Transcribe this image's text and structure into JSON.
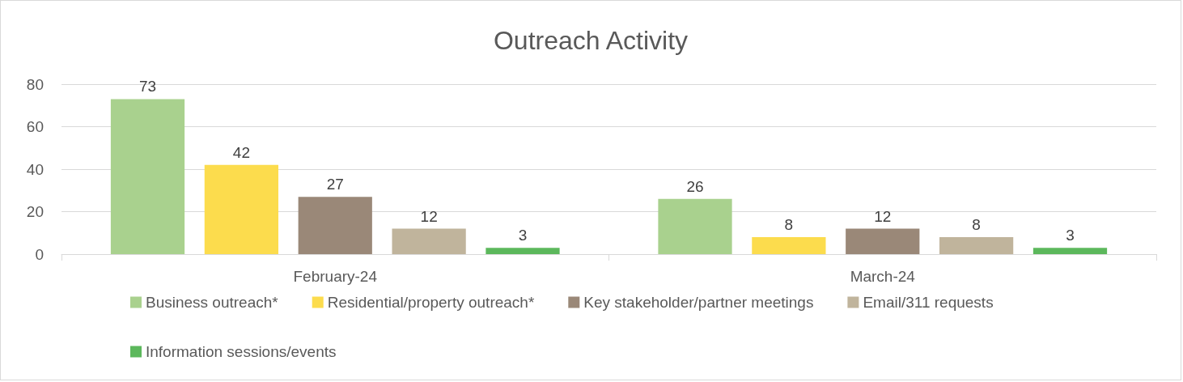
{
  "chart_data": {
    "type": "bar",
    "title": "Outreach Activity",
    "categories": [
      "February-24",
      "March-24"
    ],
    "series": [
      {
        "name": "Business outreach*",
        "color": "#a9d18e",
        "values": [
          73,
          26
        ]
      },
      {
        "name": "Residential/property outreach*",
        "color": "#fcdc4d",
        "values": [
          42,
          8
        ]
      },
      {
        "name": "Key stakeholder/partner meetings",
        "color": "#9a8878",
        "values": [
          27,
          12
        ]
      },
      {
        "name": "Email/311 requests",
        "color": "#c0b49c",
        "values": [
          12,
          8
        ]
      },
      {
        "name": "Information sessions/events",
        "color": "#5cb85c",
        "values": [
          3,
          3
        ]
      }
    ],
    "ylim": [
      0,
      80
    ],
    "yticks": [
      0,
      20,
      40,
      60,
      80
    ],
    "grid": "y",
    "legend": "bottom",
    "data_labels": true
  }
}
